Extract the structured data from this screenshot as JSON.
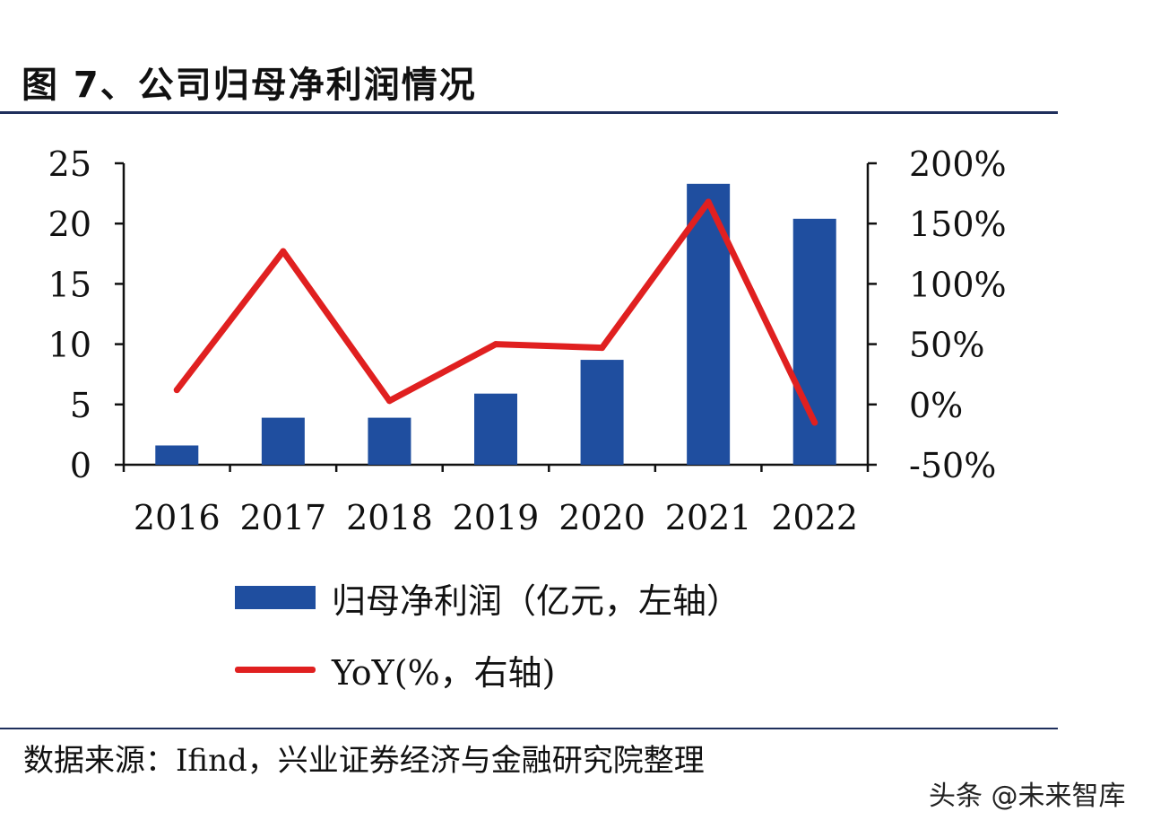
{
  "title": "图 7、公司归母净利润情况",
  "source": "数据来源：Ifind，兴业证券经济与金融研究院整理",
  "watermark": "头条 @未来智库",
  "colors": {
    "bar": "#1f4e9f",
    "line": "#e02020",
    "rule": "#1f2f5c"
  },
  "chart_data": {
    "type": "bar",
    "categories": [
      "2016",
      "2017",
      "2018",
      "2019",
      "2020",
      "2021",
      "2022"
    ],
    "series": [
      {
        "name": "归母净利润（亿元，左轴）",
        "type": "bar",
        "axis": "left",
        "values": [
          1.6,
          3.9,
          3.9,
          5.9,
          8.7,
          23.3,
          20.4
        ]
      },
      {
        "name": "YoY(%，右轴)",
        "type": "line",
        "axis": "right",
        "values": [
          12,
          127,
          3,
          50,
          47,
          168,
          -15
        ]
      }
    ],
    "y_left": {
      "range": [
        0,
        25
      ],
      "ticks": [
        "0",
        "5",
        "10",
        "15",
        "20",
        "25"
      ]
    },
    "y_right": {
      "range": [
        -50,
        200
      ],
      "ticks": [
        "-50%",
        "0%",
        "50%",
        "100%",
        "150%",
        "200%"
      ]
    },
    "grid": false,
    "legend": "bottom"
  }
}
